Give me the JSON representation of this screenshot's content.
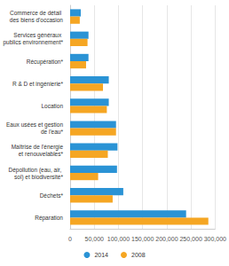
{
  "chart_data": {
    "type": "bar",
    "orientation": "horizontal",
    "categories": [
      "Commerce de détail des biens d'occasion",
      "Services généraux publics environnement*",
      "Récupération*",
      "R & D et ingénierie*",
      "Location",
      "Eaux usées et gestion de l'eau*",
      "Maîtrise de l'énergie et renouvelables*",
      "Dépollution (eau, air, sol) et biodiversité*",
      "Déchets*",
      "Réparation"
    ],
    "series": [
      {
        "name": "2014",
        "color": "#2a93d5",
        "values": [
          22000,
          38000,
          38000,
          80000,
          80000,
          95000,
          98000,
          97000,
          110000,
          240000
        ]
      },
      {
        "name": "2008",
        "color": "#f5a623",
        "values": [
          20000,
          36000,
          33000,
          68000,
          76000,
          95000,
          78000,
          58000,
          88000,
          286000
        ]
      }
    ],
    "xlim": [
      0,
      300000
    ],
    "xticks": [
      0,
      {
        "value": 50000,
        "label": "50,000"
      },
      {
        "value": 100000,
        "label": "100,000"
      },
      {
        "value": 150000,
        "label": "150,000"
      },
      {
        "value": 200000,
        "label": "200,000"
      },
      {
        "value": 250000,
        "label": "250,000"
      },
      {
        "value": 300000,
        "label": "300,000"
      }
    ],
    "grid": true,
    "legend": "bottom"
  }
}
